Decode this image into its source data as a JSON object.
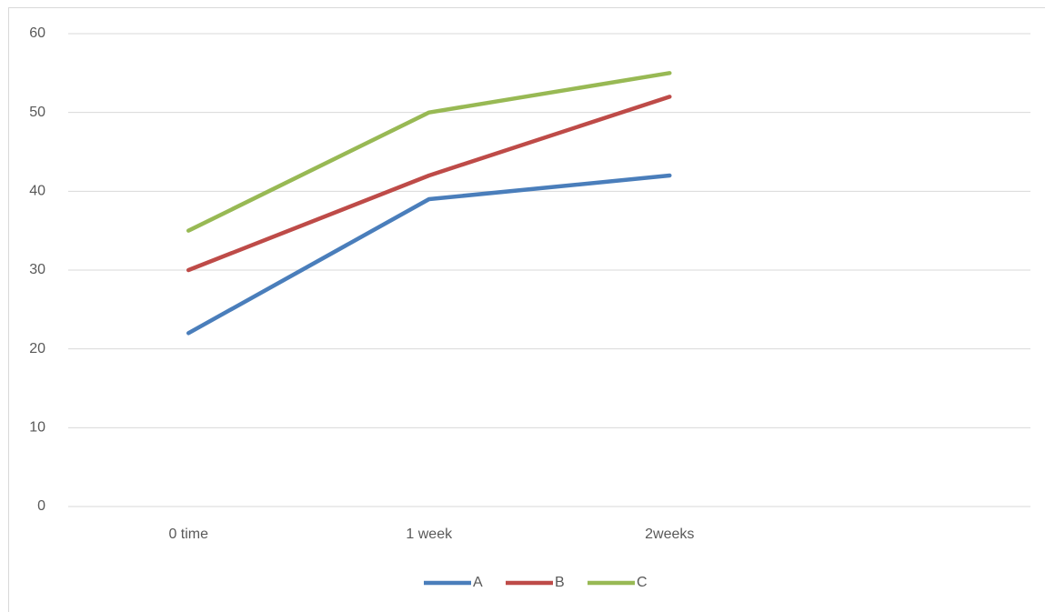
{
  "chart_data": {
    "type": "line",
    "categories": [
      "0 time",
      "1 week",
      "2weeks",
      null
    ],
    "series": [
      {
        "name": "A",
        "color": "#4a7ebb",
        "values": [
          22,
          39,
          42,
          null
        ]
      },
      {
        "name": "B",
        "color": "#be4b48",
        "values": [
          30,
          42,
          52,
          null
        ]
      },
      {
        "name": "C",
        "color": "#98b954",
        "values": [
          35,
          50,
          55,
          null
        ]
      }
    ],
    "ylim": [
      0,
      60
    ],
    "yticks": [
      0,
      10,
      20,
      30,
      40,
      50,
      60
    ],
    "grid": true,
    "legend": "bottom"
  }
}
